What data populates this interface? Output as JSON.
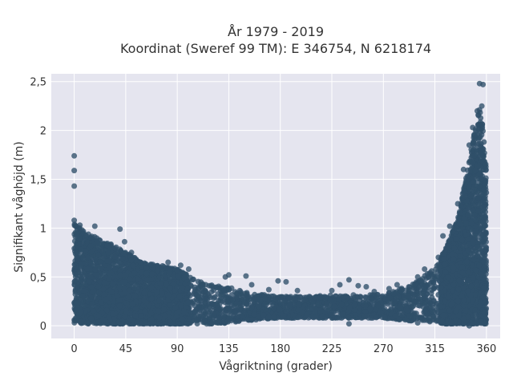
{
  "chart_data": {
    "type": "scatter",
    "title": "År 1979 - 2019",
    "subtitle": "Koordinat (Sweref 99 TM): E 346754, N 6218174",
    "xlabel": "Vågriktning (grader)",
    "ylabel": "Signifikant våghöjd (m)",
    "xlim": [
      -20,
      372
    ],
    "ylim": [
      -0.13,
      2.58
    ],
    "x_ticks": [
      0,
      45,
      90,
      135,
      180,
      225,
      270,
      315,
      360
    ],
    "x_tick_labels": [
      "0",
      "45",
      "90",
      "135",
      "180",
      "225",
      "270",
      "315",
      "360"
    ],
    "y_ticks": [
      0,
      0.5,
      1,
      1.5,
      2,
      2.5
    ],
    "y_tick_labels": [
      "0",
      "0,5",
      "1",
      "1,5",
      "2",
      "2,5"
    ],
    "grid": true,
    "marker_color": "#2f5069",
    "background_color": "#e5e5ef",
    "envelope": {
      "x": [
        0,
        10,
        20,
        30,
        45,
        60,
        75,
        90,
        105,
        120,
        135,
        150,
        165,
        180,
        195,
        210,
        225,
        240,
        255,
        270,
        285,
        295,
        305,
        315,
        325,
        335,
        340,
        345,
        350,
        355,
        360
      ],
      "y_max": [
        1.05,
        0.95,
        0.9,
        0.85,
        0.75,
        0.65,
        0.62,
        0.58,
        0.48,
        0.42,
        0.4,
        0.35,
        0.32,
        0.3,
        0.3,
        0.3,
        0.32,
        0.32,
        0.32,
        0.33,
        0.38,
        0.42,
        0.5,
        0.6,
        0.8,
        1.1,
        1.4,
        1.7,
        2.0,
        2.3,
        1.6
      ],
      "y_min": [
        0.02,
        0.02,
        0.02,
        0.02,
        0.02,
        0.02,
        0.02,
        0.02,
        0.02,
        0.02,
        0.03,
        0.05,
        0.07,
        0.08,
        0.08,
        0.08,
        0.08,
        0.08,
        0.08,
        0.08,
        0.06,
        0.05,
        0.04,
        0.03,
        0.02,
        0.02,
        0.02,
        0.02,
        0.02,
        0.02,
        0.02
      ]
    },
    "outliers": [
      {
        "x": 0,
        "y": 1.74
      },
      {
        "x": 0,
        "y": 1.59
      },
      {
        "x": 0,
        "y": 1.43
      },
      {
        "x": 0,
        "y": 1.08
      },
      {
        "x": 5,
        "y": 1.03
      },
      {
        "x": 18,
        "y": 1.02
      },
      {
        "x": 40,
        "y": 0.99
      },
      {
        "x": 44,
        "y": 0.86
      },
      {
        "x": 50,
        "y": 0.75
      },
      {
        "x": 58,
        "y": 0.65
      },
      {
        "x": 67,
        "y": 0.63
      },
      {
        "x": 82,
        "y": 0.65
      },
      {
        "x": 93,
        "y": 0.62
      },
      {
        "x": 100,
        "y": 0.58
      },
      {
        "x": 132,
        "y": 0.5
      },
      {
        "x": 135,
        "y": 0.52
      },
      {
        "x": 150,
        "y": 0.51
      },
      {
        "x": 155,
        "y": 0.42
      },
      {
        "x": 170,
        "y": 0.37
      },
      {
        "x": 178,
        "y": 0.46
      },
      {
        "x": 185,
        "y": 0.45
      },
      {
        "x": 195,
        "y": 0.36
      },
      {
        "x": 225,
        "y": 0.36
      },
      {
        "x": 232,
        "y": 0.42
      },
      {
        "x": 240,
        "y": 0.47
      },
      {
        "x": 248,
        "y": 0.41
      },
      {
        "x": 255,
        "y": 0.4
      },
      {
        "x": 262,
        "y": 0.35
      },
      {
        "x": 275,
        "y": 0.38
      },
      {
        "x": 282,
        "y": 0.42
      },
      {
        "x": 300,
        "y": 0.5
      },
      {
        "x": 306,
        "y": 0.58
      },
      {
        "x": 318,
        "y": 0.7
      },
      {
        "x": 322,
        "y": 0.92
      },
      {
        "x": 328,
        "y": 1.02
      },
      {
        "x": 335,
        "y": 1.25
      },
      {
        "x": 340,
        "y": 1.6
      },
      {
        "x": 345,
        "y": 1.85
      },
      {
        "x": 348,
        "y": 2.03
      },
      {
        "x": 352,
        "y": 2.2
      },
      {
        "x": 354,
        "y": 2.48
      },
      {
        "x": 357,
        "y": 2.47
      },
      {
        "x": 356,
        "y": 2.25
      },
      {
        "x": 358,
        "y": 1.4
      },
      {
        "x": 359,
        "y": 1.12
      },
      {
        "x": 240,
        "y": 0.02
      },
      {
        "x": 300,
        "y": 0.03
      },
      {
        "x": 345,
        "y": 0.0
      }
    ]
  }
}
